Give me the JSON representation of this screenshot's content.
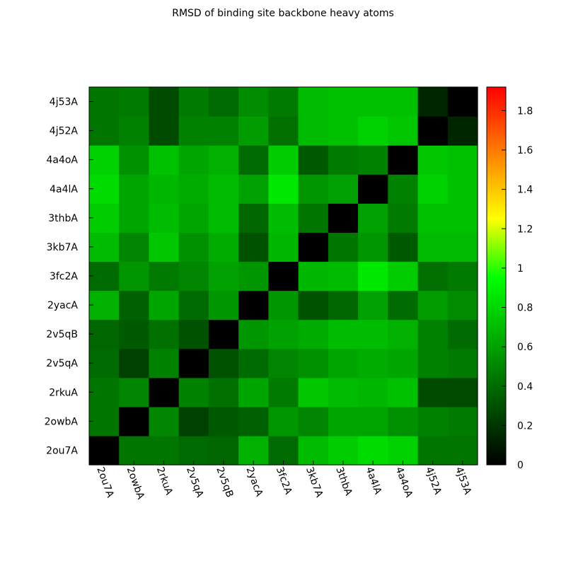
{
  "chart_data": {
    "type": "heatmap",
    "title": "RMSD of binding site backbone heavy atoms",
    "x_labels": [
      "2ou7A",
      "2owbA",
      "2rkuA",
      "2v5qA",
      "2v5qB",
      "2yacA",
      "3fc2A",
      "3kb7A",
      "3thbA",
      "4a4lA",
      "4a4oA",
      "4j52A",
      "4j53A"
    ],
    "y_labels": [
      "2ou7A",
      "2owbA",
      "2rkuA",
      "2v5qA",
      "2v5qB",
      "2yacA",
      "3fc2A",
      "3kb7A",
      "3thbA",
      "4a4lA",
      "4a4oA",
      "4j52A",
      "4j53A"
    ],
    "values": [
      [
        0.0,
        0.44,
        0.44,
        0.4,
        0.38,
        0.66,
        0.4,
        0.7,
        0.76,
        0.82,
        0.78,
        0.44,
        0.44
      ],
      [
        0.44,
        0.0,
        0.5,
        0.24,
        0.34,
        0.36,
        0.56,
        0.5,
        0.62,
        0.62,
        0.54,
        0.48,
        0.46
      ],
      [
        0.44,
        0.5,
        0.0,
        0.48,
        0.42,
        0.62,
        0.46,
        0.74,
        0.7,
        0.68,
        0.72,
        0.28,
        0.28
      ],
      [
        0.4,
        0.24,
        0.48,
        0.0,
        0.3,
        0.4,
        0.5,
        0.54,
        0.62,
        0.64,
        0.62,
        0.48,
        0.46
      ],
      [
        0.38,
        0.34,
        0.42,
        0.3,
        0.0,
        0.56,
        0.6,
        0.64,
        0.7,
        0.7,
        0.66,
        0.48,
        0.4
      ],
      [
        0.66,
        0.36,
        0.62,
        0.4,
        0.56,
        0.0,
        0.56,
        0.3,
        0.38,
        0.6,
        0.4,
        0.58,
        0.52
      ],
      [
        0.4,
        0.56,
        0.46,
        0.5,
        0.6,
        0.56,
        0.0,
        0.68,
        0.7,
        0.86,
        0.76,
        0.42,
        0.46
      ],
      [
        0.7,
        0.5,
        0.74,
        0.54,
        0.64,
        0.3,
        0.68,
        0.0,
        0.44,
        0.56,
        0.34,
        0.7,
        0.7
      ],
      [
        0.76,
        0.62,
        0.7,
        0.62,
        0.7,
        0.38,
        0.7,
        0.44,
        0.0,
        0.6,
        0.46,
        0.72,
        0.72
      ],
      [
        0.82,
        0.62,
        0.68,
        0.64,
        0.7,
        0.6,
        0.86,
        0.56,
        0.6,
        0.0,
        0.48,
        0.78,
        0.72
      ],
      [
        0.78,
        0.54,
        0.72,
        0.62,
        0.66,
        0.4,
        0.76,
        0.34,
        0.46,
        0.48,
        0.0,
        0.74,
        0.72
      ],
      [
        0.44,
        0.48,
        0.28,
        0.48,
        0.48,
        0.58,
        0.42,
        0.7,
        0.72,
        0.78,
        0.74,
        0.0,
        0.14
      ],
      [
        0.44,
        0.46,
        0.28,
        0.46,
        0.4,
        0.52,
        0.46,
        0.7,
        0.72,
        0.72,
        0.72,
        0.14,
        0.0
      ]
    ],
    "colorbar": {
      "range": [
        0,
        1.92
      ],
      "ticks": [
        0,
        0.2,
        0.4,
        0.6,
        0.8,
        1,
        1.2,
        1.4,
        1.6,
        1.8
      ],
      "tick_labels": [
        "0",
        "0.2",
        "0.4",
        "0.6",
        "0.8",
        "1",
        "1.2",
        "1.4",
        "1.6",
        "1.8"
      ],
      "colormap": [
        {
          "value": 0.0,
          "color": "#000000"
        },
        {
          "value": 0.95,
          "color": "#00ff00"
        },
        {
          "value": 1.25,
          "color": "#ffff00"
        },
        {
          "value": 1.92,
          "color": "#ff0000"
        }
      ]
    },
    "xlabel": "",
    "ylabel": "",
    "grid": false,
    "x_label_rotation": "rotated clockwise"
  }
}
